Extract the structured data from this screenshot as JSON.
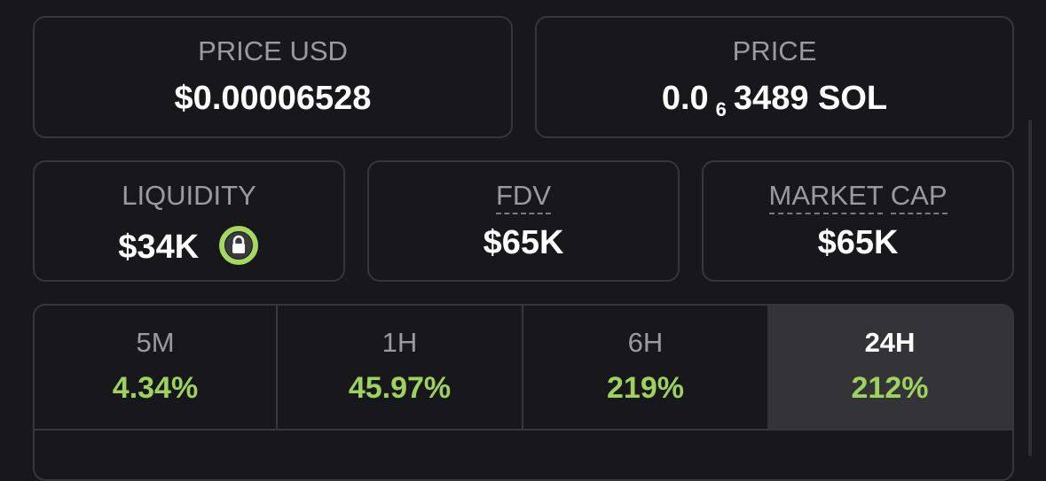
{
  "price_usd": {
    "label": "PRICE USD",
    "value": "$0.00006528"
  },
  "price": {
    "label": "PRICE",
    "value_prefix": "0.0",
    "value_zeros": "6",
    "value_rest": "3489 SOL"
  },
  "stats": [
    {
      "label": "LIQUIDITY",
      "value": "$34K"
    },
    {
      "label": "FDV",
      "value": "$65K"
    },
    {
      "label_parts": [
        "MARKET",
        "CAP"
      ],
      "value": "$65K"
    }
  ],
  "timeframes": [
    {
      "label": "5M",
      "change": "4.34%"
    },
    {
      "label": "1H",
      "change": "45.97%"
    },
    {
      "label": "6H",
      "change": "219%"
    },
    {
      "label": "24H",
      "change": "212%"
    }
  ]
}
